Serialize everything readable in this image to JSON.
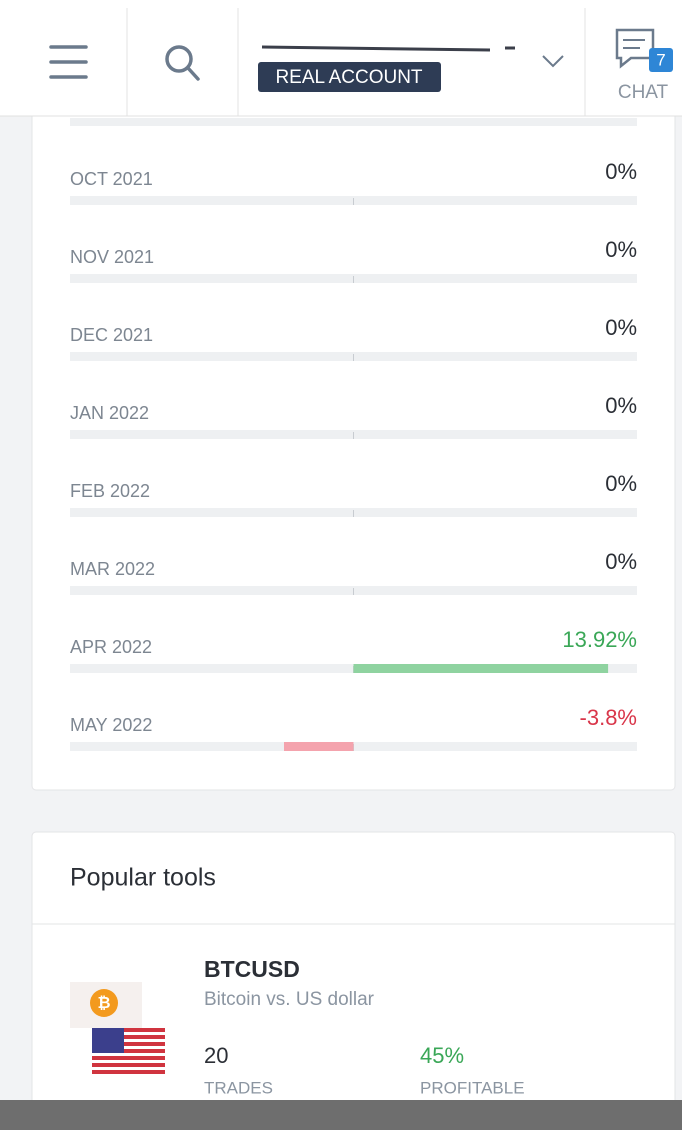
{
  "header": {
    "account_type": "REAL ACCOUNT",
    "chat_badge": "7",
    "chat_label": "CHAT"
  },
  "monthly_returns": {
    "xlim": [
      -15.5,
      15.5
    ],
    "rows": [
      {
        "label": "OCT 2021",
        "value": 0,
        "value_label": "0%"
      },
      {
        "label": "NOV 2021",
        "value": 0,
        "value_label": "0%"
      },
      {
        "label": "DEC 2021",
        "value": 0,
        "value_label": "0%"
      },
      {
        "label": "JAN 2022",
        "value": 0,
        "value_label": "0%"
      },
      {
        "label": "FEB 2022",
        "value": 0,
        "value_label": "0%"
      },
      {
        "label": "MAR 2022",
        "value": 0,
        "value_label": "0%"
      },
      {
        "label": "APR 2022",
        "value": 13.92,
        "value_label": "13.92%"
      },
      {
        "label": "MAY 2022",
        "value": -3.8,
        "value_label": "-3.8%"
      }
    ]
  },
  "popular_tools": {
    "title": "Popular tools",
    "items": [
      {
        "symbol": "BTCUSD",
        "description": "Bitcoin vs. US dollar",
        "trades": "20",
        "trades_label": "TRADES",
        "profitable": "45%",
        "profitable_label": "PROFITABLE"
      }
    ]
  }
}
